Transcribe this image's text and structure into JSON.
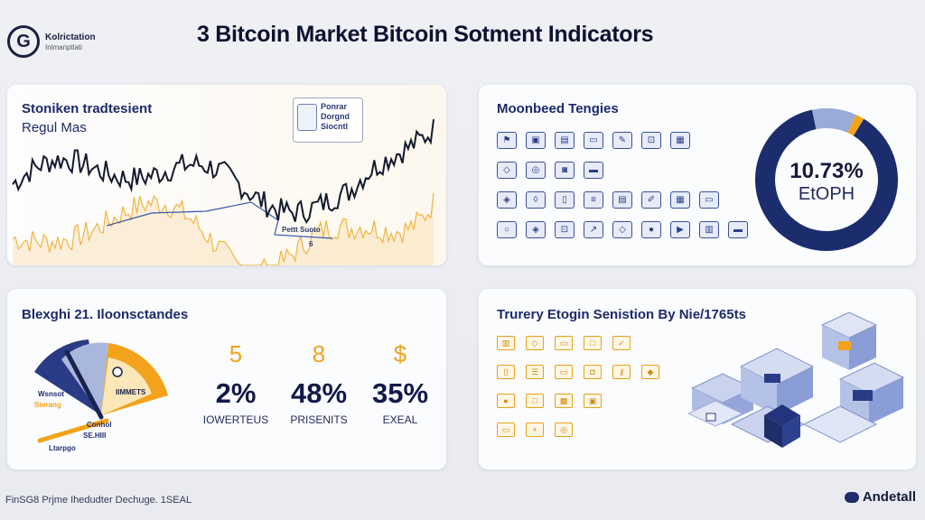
{
  "header": {
    "logo_title": "Kolrictation",
    "logo_subtitle": "Inlmanptlati",
    "title": "3 Bitcoin Market Bitcoin Sotment Indicators"
  },
  "panel_price": {
    "title": "Stoniken tradtesient",
    "subtitle": "Regul Mas",
    "badge_lines": [
      "Ponrar",
      "Dorgnd",
      "Siocntl"
    ],
    "annotation": "Pettt Suoto",
    "annotation_sub": "6",
    "colors": {
      "line": "#141a2e",
      "fill": "#f3b440",
      "trail": "#3a58a8"
    }
  },
  "panel_tengies": {
    "title": "Moonbeed Tengies",
    "icons": [
      "flag-icon",
      "image-icon",
      "chart-icon",
      "card-icon",
      "tool-icon",
      "lock-icon",
      "ticket-icon",
      "",
      "",
      "bag-icon",
      "coin-icon",
      "camera-icon",
      "laptop-icon",
      "",
      "",
      "",
      "",
      "",
      "tag-icon",
      "shield-icon",
      "doc-icon",
      "layers-icon",
      "chart-icon",
      "pen-icon",
      "grid-icon",
      "card-icon",
      "",
      "ring-icon",
      "tag-icon",
      "lock-icon",
      "arrow-icon",
      "bag-icon",
      "user-icon",
      "play-icon",
      "book-icon",
      "laptop-icon"
    ],
    "donut": {
      "value": "10.73%",
      "unit": "EtOPH",
      "segments": [
        {
          "name": "navy",
          "value": 88,
          "color": "#1c2d6e"
        },
        {
          "name": "light",
          "value": 10,
          "color": "#9aabd8"
        },
        {
          "name": "orange",
          "value": 2,
          "color": "#f2a31b"
        }
      ]
    }
  },
  "panel_stats": {
    "title": "Blexghi 21. Iloonsctandes",
    "gauge": {
      "label_left": "Wsnsot",
      "label_left2": "Sterang",
      "label_right": "IIMMETS",
      "label_mid": "Conhol",
      "label_mid2": "SE.HIII",
      "label_low": "Ltarpgo"
    },
    "stats": [
      {
        "glyph": "5",
        "value": "2%",
        "label": "IOWERTEUS"
      },
      {
        "glyph": "8",
        "value": "48%",
        "label": "PRISENITS"
      },
      {
        "glyph": "$",
        "value": "35%",
        "label": "EXEAL"
      }
    ]
  },
  "panel_sension": {
    "title": "Trurery Etogin Senistion By Nie/1765ts",
    "icons": [
      "bars-icon",
      "bag-icon",
      "card-icon",
      "box-icon",
      "check-icon",
      "",
      "doc-icon",
      "list-icon",
      "card-icon",
      "gift-icon",
      "key-icon",
      "badge-icon",
      "user-icon",
      "box-icon",
      "cube-icon",
      "case-icon",
      "",
      "",
      "card-icon",
      "plus-icon",
      "coin-icon",
      "",
      "",
      ""
    ]
  },
  "footer": {
    "left": "FinSG8 Prjme Ihedudter Dechuge. 1SEAL",
    "right": "Andetall"
  }
}
